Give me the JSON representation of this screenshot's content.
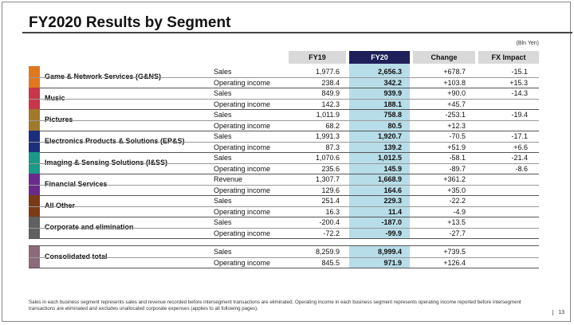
{
  "title": "FY2020 Results by Segment",
  "unit": "(Bln Yen)",
  "columns": [
    "FY19",
    "FY20",
    "Change",
    "FX Impact"
  ],
  "colors": {
    "header_dark": "#1f1f5a",
    "header_gray": "#d9d9d9",
    "fy20_highlight": "#b7dde8"
  },
  "segments": [
    {
      "name": "Game & Network Services (G&NS)",
      "color": "#e0781e",
      "rows": [
        {
          "label": "Sales",
          "fy19": "1,977.6",
          "fy20": "2,656.3",
          "change": "+678.7",
          "fx": "-15.1"
        },
        {
          "label": "Operating income",
          "fy19": "238.4",
          "fy20": "342.2",
          "change": "+103.8",
          "fx": "+15.3"
        }
      ]
    },
    {
      "name": "Music",
      "color": "#c8364a",
      "rows": [
        {
          "label": "Sales",
          "fy19": "849.9",
          "fy20": "939.9",
          "change": "+90.0",
          "fx": "-14.3"
        },
        {
          "label": "Operating income",
          "fy19": "142.3",
          "fy20": "188.1",
          "change": "+45.7",
          "fx": ""
        }
      ]
    },
    {
      "name": "Pictures",
      "color": "#a07a2a",
      "rows": [
        {
          "label": "Sales",
          "fy19": "1,011.9",
          "fy20": "758.8",
          "change": "-253.1",
          "fx": "-19.4"
        },
        {
          "label": "Operating income",
          "fy19": "68.2",
          "fy20": "80.5",
          "change": "+12.3",
          "fx": ""
        }
      ]
    },
    {
      "name": "Electronics Products & Solutions (EP&S)",
      "color": "#1c2f7a",
      "rows": [
        {
          "label": "Sales",
          "fy19": "1,991.3",
          "fy20": "1,920.7",
          "change": "-70.5",
          "fx": "-17.1"
        },
        {
          "label": "Operating income",
          "fy19": "87.3",
          "fy20": "139.2",
          "change": "+51.9",
          "fx": "+6.6"
        }
      ]
    },
    {
      "name": "Imaging & Sensing Solutions (I&SS)",
      "color": "#1a9a86",
      "rows": [
        {
          "label": "Sales",
          "fy19": "1,070.6",
          "fy20": "1,012.5",
          "change": "-58.1",
          "fx": "-21.4"
        },
        {
          "label": "Operating income",
          "fy19": "235.6",
          "fy20": "145.9",
          "change": "-89.7",
          "fx": "-8.6"
        }
      ]
    },
    {
      "name": "Financial Services",
      "color": "#6a2a8a",
      "rows": [
        {
          "label": "Revenue",
          "fy19": "1,307.7",
          "fy20": "1,668.9",
          "change": "+361.2",
          "fx": ""
        },
        {
          "label": "Operating income",
          "fy19": "129.6",
          "fy20": "164.6",
          "change": "+35.0",
          "fx": ""
        }
      ]
    },
    {
      "name": "All Other",
      "color": "#7a3a14",
      "rows": [
        {
          "label": "Sales",
          "fy19": "251.4",
          "fy20": "229.3",
          "change": "-22.2",
          "fx": ""
        },
        {
          "label": "Operating income",
          "fy19": "16.3",
          "fy20": "11.4",
          "change": "-4.9",
          "fx": ""
        }
      ]
    },
    {
      "name": "Corporate and elimination",
      "color": "#606060",
      "rows": [
        {
          "label": "Sales",
          "fy19": "-200.4",
          "fy20": "-187.0",
          "change": "+13.5",
          "fx": ""
        },
        {
          "label": "Operating income",
          "fy19": "-72.2",
          "fy20": "-99.9",
          "change": "-27.7",
          "fx": ""
        }
      ]
    }
  ],
  "total": {
    "name": "Consolidated total",
    "color": "#8c6a7a",
    "rows": [
      {
        "label": "Sales",
        "fy19": "8,259.9",
        "fy20": "8,999.4",
        "change": "+739.5",
        "fx": ""
      },
      {
        "label": "Operating income",
        "fy19": "845.5",
        "fy20": "971.9",
        "change": "+126.4",
        "fx": ""
      }
    ]
  },
  "footnote": "Sales in each business segment represents sales and revenue recorded before intersegment transactions are eliminated. Operating income in each business segment represents operating income reported before intersegment transactions are eliminated and excludes unallocated corporate expenses (applies to all following pages).",
  "page_number": "13"
}
